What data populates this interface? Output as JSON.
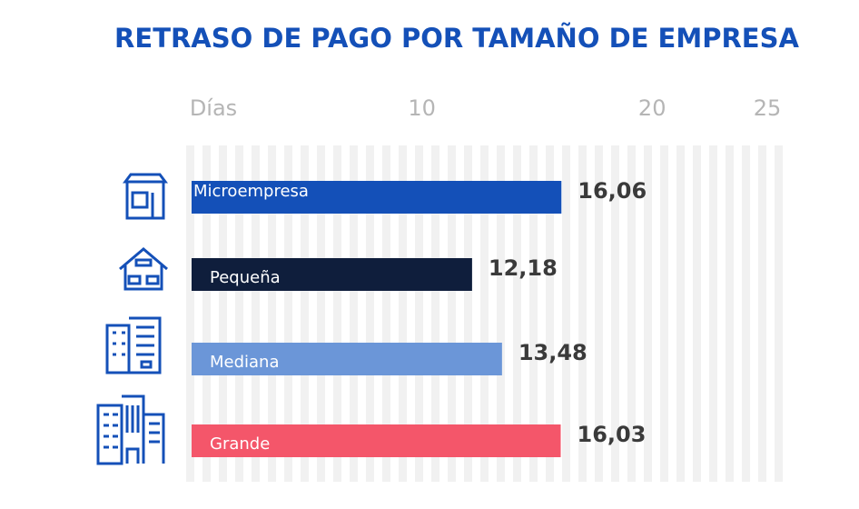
{
  "chart_data": {
    "type": "bar",
    "orientation": "horizontal",
    "title": "RETRASO DE PAGO POR TAMAÑO DE EMPRESA",
    "x_label": "Días",
    "categories": [
      "Microempresa",
      "Pequeña",
      "Mediana",
      "Grande"
    ],
    "values": [
      16.06,
      12.18,
      13.48,
      16.03
    ],
    "value_labels": [
      "16,06",
      "12,18",
      "13,48",
      "16,03"
    ],
    "colors": [
      "#1450b8",
      "#0f1e3c",
      "#6b96d8",
      "#f4566a"
    ],
    "xlim": [
      0,
      25
    ],
    "xticks": [
      10,
      20,
      25
    ],
    "grid": true
  }
}
